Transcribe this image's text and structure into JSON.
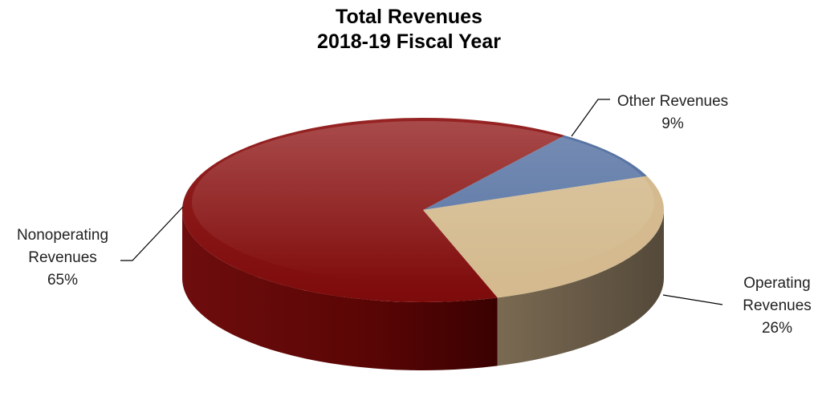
{
  "chart_data": {
    "type": "pie",
    "title": "Total Revenues",
    "subtitle": "2018-19 Fiscal Year",
    "slices": [
      {
        "label_lines": [
          "Other Revenues"
        ],
        "value": 9,
        "value_label": "9%",
        "color": "#5975a4"
      },
      {
        "label_lines": [
          "Operating",
          "Revenues"
        ],
        "value": 26,
        "value_label": "26%",
        "color": "#d4ba8e"
      },
      {
        "label_lines": [
          "Nonoperating",
          "Revenues"
        ],
        "value": 65,
        "value_label": "65%",
        "color": "#8c1616"
      }
    ],
    "legend": "none",
    "style": "3d-pie"
  }
}
